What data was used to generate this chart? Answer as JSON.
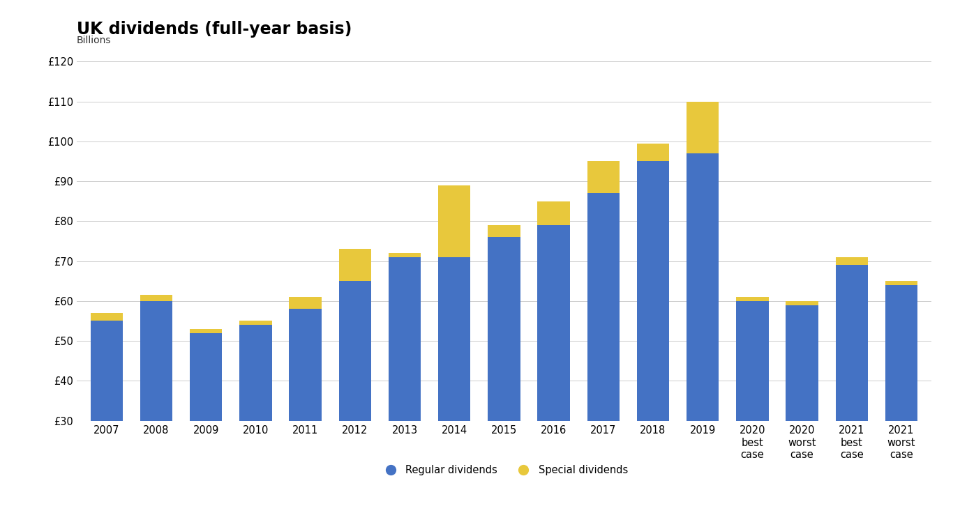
{
  "title": "UK dividends (full-year basis)",
  "ylabel": "Billions",
  "ylim": [
    30,
    120
  ],
  "yticks": [
    30,
    40,
    50,
    60,
    70,
    80,
    90,
    100,
    110,
    120
  ],
  "ytick_labels": [
    "£30",
    "£40",
    "£50",
    "£60",
    "£70",
    "£80",
    "£90",
    "£100",
    "£110",
    "£120"
  ],
  "categories": [
    "2007",
    "2008",
    "2009",
    "2010",
    "2011",
    "2012",
    "2013",
    "2014",
    "2015",
    "2016",
    "2017",
    "2018",
    "2019",
    "2020\nbest\ncase",
    "2020\nworst\ncase",
    "2021\nbest\ncase",
    "2021\nworst\ncase"
  ],
  "regular_dividends": [
    55,
    60,
    52,
    54,
    58,
    65,
    71,
    71,
    76,
    79,
    87,
    95,
    97,
    60,
    59,
    69,
    64
  ],
  "special_dividends": [
    2,
    1.5,
    1,
    1,
    3,
    8,
    1,
    18,
    3,
    6,
    8,
    4.5,
    13,
    1,
    1,
    2,
    1
  ],
  "bar_color_regular": "#4472C4",
  "bar_color_special": "#E8C83C",
  "bar_width": 0.65,
  "background_color": "#FFFFFF",
  "legend_labels": [
    "Regular dividends",
    "Special dividends"
  ],
  "title_fontsize": 17,
  "axis_fontsize": 10,
  "tick_fontsize": 10.5
}
